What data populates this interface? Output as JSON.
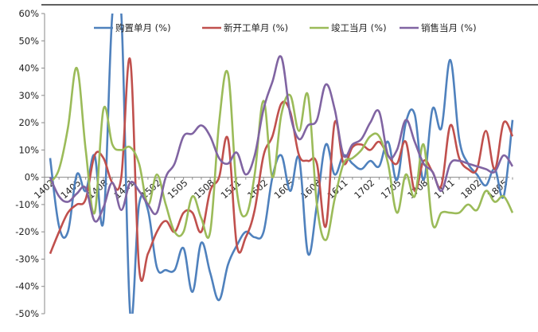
{
  "chart_data": {
    "type": "line",
    "title": "",
    "xlabel": "",
    "ylabel": "",
    "ylim": [
      -0.5,
      0.6
    ],
    "y_ticks": [
      "60%",
      "50%",
      "40%",
      "30%",
      "20%",
      "10%",
      "0%",
      "-10%",
      "-20%",
      "-30%",
      "-40%",
      "-50%"
    ],
    "x_tick_labels": [
      "1402",
      "1405",
      "1408",
      "1411",
      "1502",
      "1505",
      "1508",
      "1511",
      "1602",
      "1605",
      "1608",
      "1611",
      "1702",
      "1705",
      "1708",
      "1711",
      "1802",
      "1805"
    ],
    "x_tick_step": 3,
    "grid": false,
    "legend_position": "top",
    "categories": [
      "1402",
      "1403",
      "1404",
      "1405",
      "1406",
      "1407",
      "1408",
      "1409",
      "1410",
      "1411",
      "1412",
      "1501",
      "1502",
      "1503",
      "1504",
      "1505",
      "1506",
      "1507",
      "1508",
      "1509",
      "1510",
      "1511",
      "1512",
      "1601",
      "1602",
      "1603",
      "1604",
      "1605",
      "1606",
      "1607",
      "1608",
      "1609",
      "1610",
      "1611",
      "1612",
      "1701",
      "1702",
      "1703",
      "1704",
      "1705",
      "1706",
      "1707",
      "1708",
      "1709",
      "1710",
      "1711",
      "1712",
      "1801",
      "1802",
      "1803",
      "1804",
      "1805",
      "1806"
    ],
    "series": [
      {
        "name": "购置单月 (%)",
        "color": "#4F81BD",
        "values": [
          0.07,
          -0.18,
          -0.2,
          0.01,
          -0.05,
          0.08,
          -0.16,
          0.6,
          0.6,
          -0.5,
          -0.1,
          -0.12,
          -0.33,
          -0.34,
          -0.34,
          -0.26,
          -0.42,
          -0.24,
          -0.35,
          -0.45,
          -0.32,
          -0.25,
          -0.2,
          -0.22,
          -0.2,
          0.0,
          0.08,
          -0.05,
          0.07,
          -0.28,
          -0.1,
          0.12,
          0.01,
          0.08,
          0.05,
          0.03,
          0.06,
          0.04,
          0.13,
          -0.01,
          0.2,
          0.23,
          -0.01,
          0.25,
          0.18,
          0.43,
          0.14,
          0.05,
          0.01,
          -0.03,
          0.03,
          -0.07,
          0.21
        ]
      },
      {
        "name": "新开工单月 (%)",
        "color": "#C0504D",
        "values": [
          -0.28,
          -0.2,
          -0.13,
          -0.1,
          -0.08,
          0.08,
          0.07,
          -0.02,
          0.0,
          0.43,
          -0.33,
          -0.28,
          -0.2,
          -0.16,
          -0.2,
          -0.13,
          -0.13,
          -0.2,
          -0.05,
          0.0,
          0.14,
          -0.25,
          -0.22,
          -0.12,
          0.08,
          0.15,
          0.27,
          0.24,
          0.08,
          0.06,
          0.05,
          -0.18,
          0.2,
          0.05,
          0.11,
          0.12,
          0.1,
          0.13,
          0.08,
          0.05,
          0.13,
          -0.05,
          0.06,
          0.02,
          -0.03,
          0.19,
          0.07,
          0.03,
          0.03,
          0.17,
          0.03,
          0.2,
          0.15
        ]
      },
      {
        "name": "竣工当月 (%)",
        "color": "#9BBB59",
        "values": [
          -0.02,
          0.03,
          0.18,
          0.4,
          0.1,
          -0.13,
          0.25,
          0.12,
          0.1,
          0.11,
          0.05,
          -0.1,
          0.01,
          -0.1,
          -0.2,
          -0.2,
          -0.07,
          -0.15,
          -0.2,
          0.2,
          0.38,
          -0.05,
          -0.14,
          0.01,
          0.28,
          0.0,
          0.23,
          0.3,
          0.17,
          0.3,
          -0.1,
          -0.23,
          -0.08,
          0.05,
          0.07,
          0.1,
          0.15,
          0.15,
          0.05,
          -0.13,
          0.01,
          -0.07,
          0.12,
          -0.17,
          -0.13,
          -0.13,
          -0.13,
          -0.1,
          -0.12,
          -0.05,
          -0.09,
          -0.07,
          -0.13
        ]
      },
      {
        "name": "销售当月 (%)",
        "color": "#8064A2",
        "values": [
          0.0,
          -0.07,
          -0.09,
          -0.06,
          -0.04,
          -0.16,
          -0.11,
          -0.02,
          -0.12,
          -0.02,
          -0.05,
          -0.1,
          -0.13,
          0.0,
          0.05,
          0.15,
          0.16,
          0.19,
          0.15,
          0.07,
          0.05,
          0.09,
          0.01,
          0.08,
          0.25,
          0.35,
          0.44,
          0.23,
          0.14,
          0.19,
          0.21,
          0.34,
          0.25,
          0.08,
          0.12,
          0.14,
          0.2,
          0.24,
          0.08,
          0.1,
          0.21,
          0.13,
          0.05,
          0.02,
          -0.05,
          0.05,
          0.06,
          0.05,
          0.04,
          0.03,
          0.02,
          0.08,
          0.04
        ]
      }
    ]
  }
}
